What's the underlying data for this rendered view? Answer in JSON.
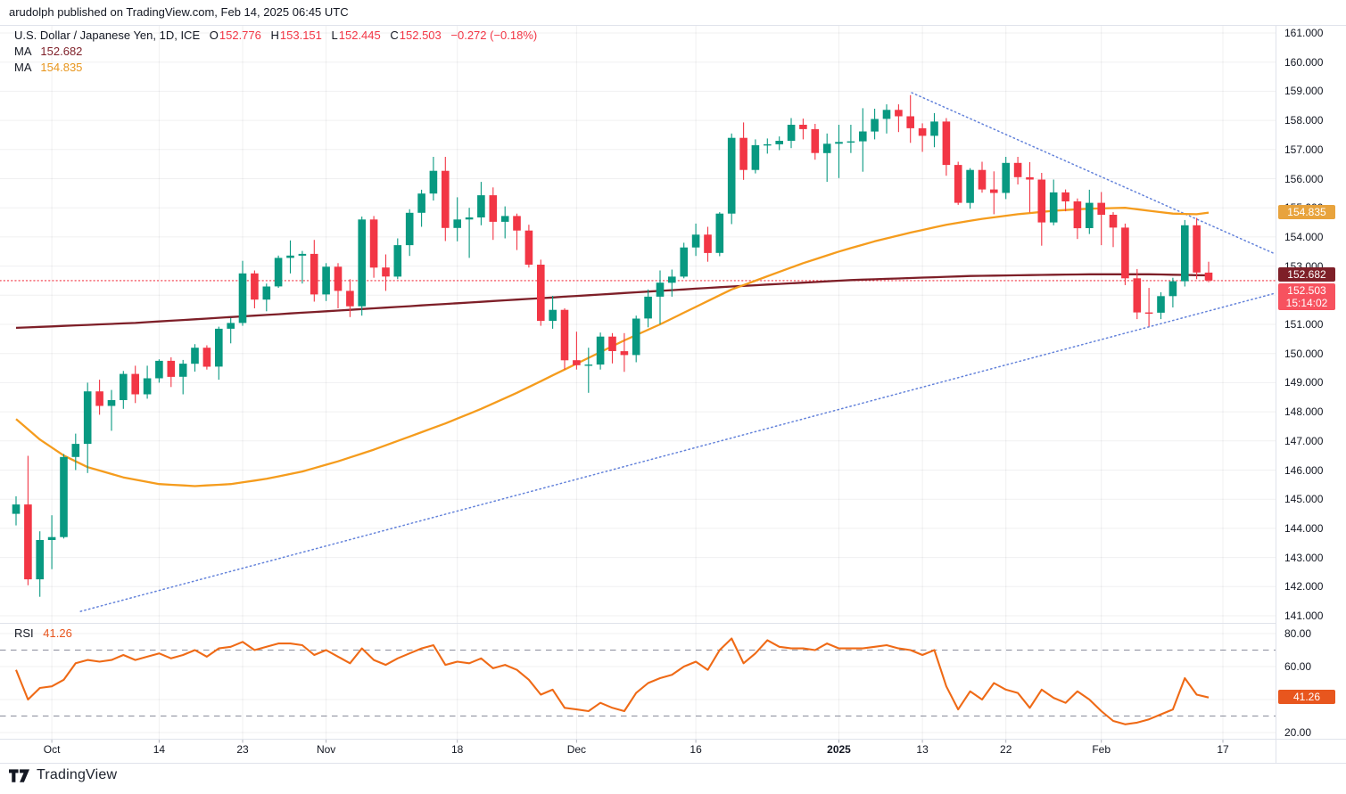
{
  "header": {
    "published_line": "arudolph published on TradingView.com, Feb 14, 2025 06:45 UTC"
  },
  "legend": {
    "symbol": "U.S. Dollar / Japanese Yen, 1D, ICE",
    "ohlc": {
      "o_label": "O",
      "o": "152.776",
      "h_label": "H",
      "h": "153.151",
      "l_label": "L",
      "l": "152.445",
      "c_label": "C",
      "c": "152.503",
      "change": "−0.272 (−0.18%)"
    },
    "ma1": {
      "label": "MA",
      "value": "152.682"
    },
    "ma2": {
      "label": "MA",
      "value": "154.835"
    }
  },
  "rsi_legend": {
    "label": "RSI",
    "value": "41.26"
  },
  "price_scale": {
    "labels": [
      "161.000",
      "160.000",
      "159.000",
      "158.000",
      "157.000",
      "156.000",
      "155.000",
      "154.000",
      "153.000",
      "152.000",
      "151.000",
      "150.000",
      "149.000",
      "148.000",
      "147.000",
      "146.000",
      "145.000",
      "144.000",
      "143.000",
      "142.000",
      "141.000"
    ],
    "badges": [
      {
        "text": "154.835",
        "price": 154.835,
        "bg": "#E8A33D"
      },
      {
        "text": "152.682",
        "price": 152.682,
        "bg": "#7E1F28"
      },
      {
        "text": "152.503",
        "price": 152.503,
        "sub": "15:14:02",
        "bg": "#F7525F"
      }
    ]
  },
  "rsi_scale": {
    "labels": [
      {
        "text": "80.00",
        "value": 80
      },
      {
        "text": "60.00",
        "value": 60
      },
      {
        "text": "20.00",
        "value": 20
      }
    ],
    "badge": {
      "text": "41.26",
      "value": 41.26,
      "bg": "#E8561E"
    }
  },
  "time_scale": {
    "labels": [
      {
        "text": "Oct",
        "index": 3
      },
      {
        "text": "14",
        "index": 12
      },
      {
        "text": "23",
        "index": 19
      },
      {
        "text": "Nov",
        "index": 26
      },
      {
        "text": "18",
        "index": 37
      },
      {
        "text": "Dec",
        "index": 47
      },
      {
        "text": "16",
        "index": 57
      },
      {
        "text": "2025",
        "index": 69,
        "bold": true
      },
      {
        "text": "13",
        "index": 76
      },
      {
        "text": "22",
        "index": 83
      },
      {
        "text": "Feb",
        "index": 91
      },
      {
        "text": "17",
        "index": 101.2
      }
    ]
  },
  "footer": {
    "brand": "TradingView"
  },
  "chart_data": {
    "type": "candlestick",
    "title": "U.S. Dollar / Japanese Yen, 1D, ICE",
    "price_axis_range": [
      141,
      161
    ],
    "rsi_axis_range": [
      20,
      80
    ],
    "rsi_bands": {
      "overbought": 70,
      "oversold": 30
    },
    "last_price_line": 152.503,
    "colors": {
      "up": "#089981",
      "down": "#F23645",
      "ma1": "#7E1F28",
      "ma2": "#F59C1D",
      "rsi": "#EF6A16",
      "trendline": "#5B7CD9",
      "last_price": "#F23645",
      "grid": "rgba(42,46,57,0.07)",
      "border": "#E0E3EB",
      "dashed_band": "#75798A"
    },
    "candles": {
      "columns": [
        "date",
        "open",
        "high",
        "low",
        "close"
      ],
      "rows": [
        [
          "Sep 26",
          144.5,
          145.1,
          144.1,
          144.82
        ],
        [
          "Sep 27",
          144.82,
          146.49,
          142.05,
          142.25
        ],
        [
          "Sep 30",
          142.25,
          143.9,
          141.65,
          143.6
        ],
        [
          "Oct 1",
          143.6,
          144.45,
          142.6,
          143.7
        ],
        [
          "Oct 2",
          143.7,
          146.55,
          143.65,
          146.45
        ],
        [
          "Oct 3",
          146.45,
          147.25,
          146.0,
          146.9
        ],
        [
          "Oct 4",
          146.9,
          149.0,
          145.9,
          148.7
        ],
        [
          "Oct 7",
          148.7,
          149.1,
          147.9,
          148.2
        ],
        [
          "Oct 8",
          148.2,
          148.75,
          147.35,
          148.4
        ],
        [
          "Oct 9",
          148.4,
          149.4,
          148.1,
          149.3
        ],
        [
          "Oct 10",
          149.3,
          149.58,
          148.3,
          148.6
        ],
        [
          "Oct 11",
          148.6,
          149.58,
          148.45,
          149.15
        ],
        [
          "Oct 14",
          149.15,
          149.8,
          149.0,
          149.75
        ],
        [
          "Oct 15",
          149.75,
          149.87,
          148.85,
          149.2
        ],
        [
          "Oct 16",
          149.2,
          149.78,
          148.6,
          149.65
        ],
        [
          "Oct 17",
          149.65,
          150.32,
          149.38,
          150.2
        ],
        [
          "Oct 18",
          150.2,
          150.28,
          149.45,
          149.55
        ],
        [
          "Oct 21",
          149.55,
          150.92,
          149.1,
          150.85
        ],
        [
          "Oct 22",
          150.85,
          151.22,
          150.35,
          151.05
        ],
        [
          "Oct 23",
          151.05,
          153.18,
          150.95,
          152.75
        ],
        [
          "Oct 24",
          152.75,
          152.85,
          151.55,
          151.85
        ],
        [
          "Oct 25",
          151.85,
          152.4,
          151.45,
          152.3
        ],
        [
          "Oct 28",
          152.3,
          153.36,
          152.25,
          153.28
        ],
        [
          "Oct 29",
          153.28,
          153.88,
          152.75,
          153.36
        ],
        [
          "Oct 30",
          153.36,
          153.52,
          152.4,
          153.42
        ],
        [
          "Oct 31",
          153.42,
          153.9,
          151.78,
          152.03
        ],
        [
          "Nov 1",
          152.03,
          153.1,
          151.8,
          152.98
        ],
        [
          "Nov 4",
          152.98,
          153.1,
          151.55,
          152.15
        ],
        [
          "Nov 5",
          152.15,
          152.55,
          151.25,
          151.62
        ],
        [
          "Nov 6",
          151.62,
          154.7,
          151.3,
          154.6
        ],
        [
          "Nov 7",
          154.6,
          154.72,
          152.6,
          152.95
        ],
        [
          "Nov 8",
          152.95,
          153.4,
          152.15,
          152.64
        ],
        [
          "Nov 11",
          152.64,
          153.95,
          152.55,
          153.72
        ],
        [
          "Nov 12",
          153.72,
          154.95,
          153.35,
          154.83
        ],
        [
          "Nov 13",
          154.83,
          155.62,
          154.35,
          155.49
        ],
        [
          "Nov 14",
          155.49,
          156.75,
          155.25,
          156.27
        ],
        [
          "Nov 15",
          156.27,
          156.75,
          153.86,
          154.31
        ],
        [
          "Nov 18",
          154.31,
          155.36,
          153.85,
          154.6
        ],
        [
          "Nov 19",
          154.6,
          155.0,
          153.28,
          154.67
        ],
        [
          "Nov 20",
          154.67,
          155.89,
          154.4,
          155.43
        ],
        [
          "Nov 21",
          155.43,
          155.7,
          153.9,
          154.52
        ],
        [
          "Nov 22",
          154.52,
          155.05,
          153.95,
          154.72
        ],
        [
          "Nov 25",
          154.72,
          154.8,
          153.55,
          154.22
        ],
        [
          "Nov 26",
          154.22,
          154.42,
          152.95,
          153.05
        ],
        [
          "Nov 27",
          153.05,
          153.22,
          150.95,
          151.12
        ],
        [
          "Nov 28",
          151.12,
          151.98,
          150.85,
          151.5
        ],
        [
          "Nov 29",
          151.5,
          151.55,
          149.45,
          149.77
        ],
        [
          "Dec 2",
          149.77,
          150.75,
          149.45,
          149.6
        ],
        [
          "Dec 3",
          149.6,
          150.2,
          148.65,
          149.62
        ],
        [
          "Dec 4",
          149.62,
          150.72,
          149.45,
          150.58
        ],
        [
          "Dec 5",
          150.58,
          150.7,
          149.66,
          150.08
        ],
        [
          "Dec 6",
          150.08,
          150.7,
          149.37,
          149.95
        ],
        [
          "Dec 9",
          149.95,
          151.3,
          149.7,
          151.2
        ],
        [
          "Dec 10",
          151.2,
          152.2,
          150.9,
          151.95
        ],
        [
          "Dec 11",
          151.95,
          152.85,
          151.0,
          152.43
        ],
        [
          "Dec 12",
          152.43,
          152.88,
          151.95,
          152.64
        ],
        [
          "Dec 13",
          152.64,
          153.8,
          152.58,
          153.64
        ],
        [
          "Dec 16",
          153.64,
          154.46,
          153.35,
          154.08
        ],
        [
          "Dec 17",
          154.08,
          154.35,
          153.15,
          153.45
        ],
        [
          "Dec 18",
          153.45,
          154.85,
          153.34,
          154.8
        ],
        [
          "Dec 19",
          154.8,
          157.55,
          154.44,
          157.4
        ],
        [
          "Dec 20",
          157.4,
          157.93,
          155.96,
          156.3
        ],
        [
          "Dec 23",
          156.3,
          157.35,
          156.18,
          157.15
        ],
        [
          "Dec 24",
          157.15,
          157.38,
          156.86,
          157.18
        ],
        [
          "Dec 25",
          157.18,
          157.45,
          156.98,
          157.3
        ],
        [
          "Dec 26",
          157.3,
          158.08,
          157.05,
          157.85
        ],
        [
          "Dec 27",
          157.85,
          158.06,
          157.35,
          157.7
        ],
        [
          "Dec 30",
          157.7,
          157.88,
          156.65,
          156.88
        ],
        [
          "Dec 31",
          156.88,
          157.55,
          155.89,
          157.2
        ],
        [
          "Jan 2",
          157.2,
          157.85,
          156.02,
          157.26
        ],
        [
          "Jan 3",
          157.26,
          157.85,
          156.88,
          157.28
        ],
        [
          "Jan 6",
          157.28,
          158.42,
          156.24,
          157.62
        ],
        [
          "Jan 7",
          157.62,
          158.4,
          157.35,
          158.05
        ],
        [
          "Jan 8",
          158.05,
          158.55,
          157.55,
          158.36
        ],
        [
          "Jan 9",
          158.36,
          158.55,
          157.6,
          158.14
        ],
        [
          "Jan 10",
          158.14,
          158.87,
          157.23,
          157.73
        ],
        [
          "Jan 13",
          157.73,
          157.9,
          156.92,
          157.47
        ],
        [
          "Jan 14",
          157.47,
          158.25,
          157.08,
          157.96
        ],
        [
          "Jan 15",
          157.96,
          158.08,
          156.1,
          156.47
        ],
        [
          "Jan 16",
          156.47,
          156.58,
          155.1,
          155.17
        ],
        [
          "Jan 17",
          155.17,
          156.36,
          154.97,
          156.3
        ],
        [
          "Jan 20",
          156.3,
          156.58,
          155.52,
          155.63
        ],
        [
          "Jan 21",
          155.63,
          156.25,
          154.78,
          155.51
        ],
        [
          "Jan 22",
          155.51,
          156.75,
          155.3,
          156.54
        ],
        [
          "Jan 23",
          156.54,
          156.75,
          155.8,
          156.05
        ],
        [
          "Jan 24",
          156.05,
          156.57,
          154.84,
          155.97
        ],
        [
          "Jan 27",
          155.97,
          156.2,
          153.7,
          154.5
        ],
        [
          "Jan 28",
          154.5,
          155.97,
          154.4,
          155.53
        ],
        [
          "Jan 29",
          155.53,
          155.63,
          154.88,
          155.22
        ],
        [
          "Jan 30",
          155.22,
          155.32,
          153.93,
          154.3
        ],
        [
          "Jan 31",
          154.3,
          155.62,
          154.1,
          155.17
        ],
        [
          "Feb 3",
          155.17,
          155.54,
          153.72,
          154.76
        ],
        [
          "Feb 4",
          154.76,
          154.85,
          153.65,
          154.32
        ],
        [
          "Feb 5",
          154.32,
          154.46,
          152.35,
          152.58
        ],
        [
          "Feb 6",
          152.58,
          152.9,
          151.18,
          151.41
        ],
        [
          "Feb 7",
          151.41,
          152.25,
          150.93,
          151.4
        ],
        [
          "Feb 10",
          151.4,
          152.1,
          151.18,
          151.97
        ],
        [
          "Feb 11",
          151.97,
          152.6,
          151.58,
          152.48
        ],
        [
          "Feb 12",
          152.48,
          154.58,
          152.3,
          154.4
        ],
        [
          "Feb 13",
          154.4,
          154.65,
          152.55,
          152.78
        ],
        [
          "Feb 14",
          152.776,
          153.151,
          152.445,
          152.503
        ]
      ]
    },
    "ma1": {
      "label": "MA (slow)",
      "current": 152.682,
      "anchors": [
        [
          0,
          150.88
        ],
        [
          10,
          151.05
        ],
        [
          20,
          151.3
        ],
        [
          30,
          151.55
        ],
        [
          40,
          151.8
        ],
        [
          50,
          152.05
        ],
        [
          60,
          152.3
        ],
        [
          70,
          152.52
        ],
        [
          80,
          152.66
        ],
        [
          90,
          152.72
        ],
        [
          95,
          152.72
        ],
        [
          100,
          152.682
        ]
      ]
    },
    "ma2": {
      "label": "MA (fast)",
      "current": 154.835,
      "anchors": [
        [
          0,
          147.75
        ],
        [
          2,
          147.05
        ],
        [
          4,
          146.5
        ],
        [
          6,
          146.1
        ],
        [
          9,
          145.75
        ],
        [
          12,
          145.52
        ],
        [
          15,
          145.45
        ],
        [
          18,
          145.52
        ],
        [
          21,
          145.7
        ],
        [
          24,
          145.95
        ],
        [
          27,
          146.3
        ],
        [
          30,
          146.7
        ],
        [
          33,
          147.15
        ],
        [
          36,
          147.6
        ],
        [
          39,
          148.1
        ],
        [
          42,
          148.65
        ],
        [
          45,
          149.25
        ],
        [
          48,
          149.85
        ],
        [
          51,
          150.45
        ],
        [
          54,
          151.0
        ],
        [
          57,
          151.6
        ],
        [
          60,
          152.2
        ],
        [
          63,
          152.65
        ],
        [
          66,
          153.1
        ],
        [
          69,
          153.5
        ],
        [
          72,
          153.85
        ],
        [
          75,
          154.15
        ],
        [
          78,
          154.42
        ],
        [
          81,
          154.62
        ],
        [
          84,
          154.78
        ],
        [
          87,
          154.9
        ],
        [
          90,
          154.97
        ],
        [
          93,
          155.0
        ],
        [
          95,
          154.9
        ],
        [
          97,
          154.8
        ],
        [
          99,
          154.78
        ],
        [
          100,
          154.835
        ]
      ]
    },
    "rsi": {
      "label": "RSI",
      "current": 41.26,
      "values": [
        58,
        40,
        47,
        48,
        52,
        62,
        64,
        63,
        64,
        67,
        64,
        66,
        68,
        65,
        67,
        70,
        66,
        71,
        72,
        75,
        70,
        72,
        74,
        74,
        73,
        67,
        70,
        66,
        62,
        71,
        64,
        61,
        65,
        68,
        71,
        73,
        61,
        63,
        62,
        65,
        59,
        61,
        58,
        52,
        43,
        46,
        35,
        34,
        33,
        38,
        35,
        33,
        44,
        50,
        53,
        55,
        60,
        63,
        58,
        70,
        77,
        62,
        68,
        76,
        72,
        71,
        71,
        70,
        74,
        71,
        71,
        71,
        72,
        73,
        71,
        70,
        67,
        70,
        48,
        34,
        45,
        40,
        50,
        46,
        44,
        35,
        46,
        41,
        38,
        45,
        40,
        33,
        27,
        25,
        26,
        28,
        31,
        34,
        53,
        43,
        41.26
      ]
    },
    "trendlines": [
      {
        "label": "descending-resistance",
        "from_index": 75.1,
        "from_price": 158.95,
        "to_index": 105.4,
        "to_price": 153.45
      },
      {
        "label": "ascending-support",
        "from_index": 5.4,
        "from_price": 141.15,
        "to_index": 105.4,
        "to_price": 152.05
      }
    ]
  }
}
